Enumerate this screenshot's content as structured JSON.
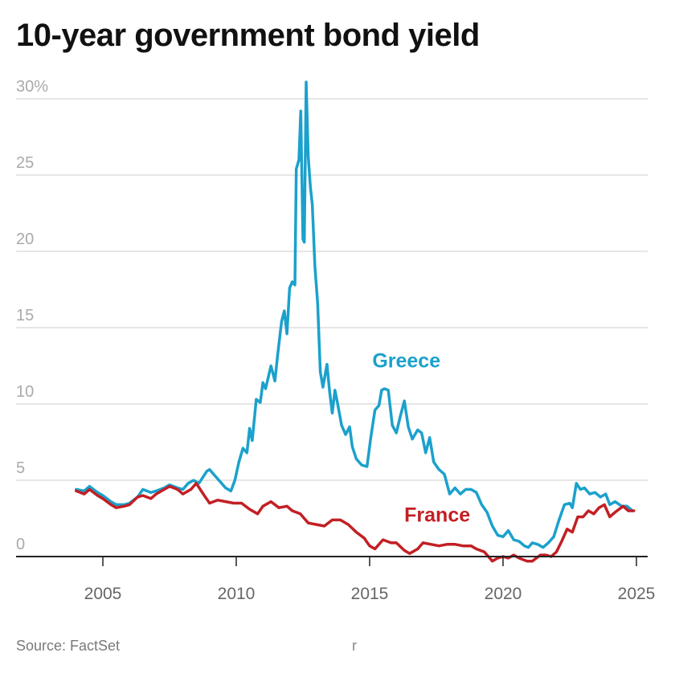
{
  "colors": {
    "greece": "#1ba1cc",
    "france": "#c21f24",
    "grid": "#dddddd",
    "axis": "#222222",
    "tick_text": "#aaaaaa",
    "xtick_text": "#666666"
  },
  "footer": {
    "source": "Source: FactSet",
    "stray_mark": "r"
  },
  "chart_data": {
    "type": "line",
    "title": "10-year government bond yield",
    "xlabel": "",
    "ylabel": "",
    "xlim": [
      2003.0,
      2025.1
    ],
    "ylim": [
      0,
      30
    ],
    "y_ticks": [
      0,
      5,
      10,
      15,
      20,
      25,
      30
    ],
    "y_tick_labels": [
      "0",
      "5",
      "10",
      "15",
      "20",
      "25",
      "30%"
    ],
    "x_ticks": [
      2005,
      2010,
      2015,
      2020,
      2025
    ],
    "x_tick_labels": [
      "2005",
      "2010",
      "2015",
      "2020",
      "2025"
    ],
    "grid": true,
    "legend": "direct labels on lines",
    "series": [
      {
        "name": "Greece",
        "label_position": {
          "x": 2015.1,
          "y": 12.4
        },
        "points": [
          [
            2004.0,
            4.4
          ],
          [
            2004.3,
            4.3
          ],
          [
            2004.5,
            4.6
          ],
          [
            2004.8,
            4.2
          ],
          [
            2005.0,
            4.0
          ],
          [
            2005.3,
            3.6
          ],
          [
            2005.5,
            3.4
          ],
          [
            2005.8,
            3.4
          ],
          [
            2006.0,
            3.5
          ],
          [
            2006.3,
            3.9
          ],
          [
            2006.5,
            4.4
          ],
          [
            2006.8,
            4.2
          ],
          [
            2007.0,
            4.3
          ],
          [
            2007.3,
            4.5
          ],
          [
            2007.5,
            4.7
          ],
          [
            2007.8,
            4.5
          ],
          [
            2008.0,
            4.4
          ],
          [
            2008.2,
            4.8
          ],
          [
            2008.4,
            5.0
          ],
          [
            2008.6,
            4.8
          ],
          [
            2008.9,
            5.6
          ],
          [
            2009.0,
            5.7
          ],
          [
            2009.2,
            5.3
          ],
          [
            2009.4,
            4.9
          ],
          [
            2009.6,
            4.5
          ],
          [
            2009.8,
            4.3
          ],
          [
            2009.95,
            5.0
          ],
          [
            2010.1,
            6.2
          ],
          [
            2010.25,
            7.1
          ],
          [
            2010.4,
            6.8
          ],
          [
            2010.5,
            8.4
          ],
          [
            2010.6,
            7.6
          ],
          [
            2010.75,
            10.3
          ],
          [
            2010.9,
            10.1
          ],
          [
            2011.0,
            11.4
          ],
          [
            2011.1,
            11.0
          ],
          [
            2011.3,
            12.5
          ],
          [
            2011.45,
            11.5
          ],
          [
            2011.55,
            13.2
          ],
          [
            2011.7,
            15.4
          ],
          [
            2011.8,
            16.1
          ],
          [
            2011.9,
            14.6
          ],
          [
            2012.0,
            17.6
          ],
          [
            2012.1,
            18.0
          ],
          [
            2012.2,
            17.8
          ],
          [
            2012.25,
            25.4
          ],
          [
            2012.35,
            26.0
          ],
          [
            2012.42,
            29.2
          ],
          [
            2012.5,
            20.8
          ],
          [
            2012.55,
            20.6
          ],
          [
            2012.62,
            31.1
          ],
          [
            2012.7,
            26.2
          ],
          [
            2012.78,
            24.2
          ],
          [
            2012.85,
            23.1
          ],
          [
            2012.95,
            19.0
          ],
          [
            2013.05,
            16.6
          ],
          [
            2013.15,
            12.1
          ],
          [
            2013.25,
            11.1
          ],
          [
            2013.4,
            12.6
          ],
          [
            2013.5,
            10.8
          ],
          [
            2013.6,
            9.4
          ],
          [
            2013.7,
            10.9
          ],
          [
            2013.8,
            10.0
          ],
          [
            2013.95,
            8.6
          ],
          [
            2014.1,
            8.0
          ],
          [
            2014.25,
            8.5
          ],
          [
            2014.35,
            7.2
          ],
          [
            2014.5,
            6.4
          ],
          [
            2014.7,
            6.0
          ],
          [
            2014.9,
            5.9
          ],
          [
            2015.05,
            7.9
          ],
          [
            2015.2,
            9.6
          ],
          [
            2015.35,
            9.9
          ],
          [
            2015.45,
            10.9
          ],
          [
            2015.55,
            11.0
          ],
          [
            2015.7,
            10.9
          ],
          [
            2015.85,
            8.6
          ],
          [
            2016.0,
            8.1
          ],
          [
            2016.15,
            9.2
          ],
          [
            2016.3,
            10.2
          ],
          [
            2016.45,
            8.5
          ],
          [
            2016.6,
            7.7
          ],
          [
            2016.8,
            8.3
          ],
          [
            2016.95,
            8.1
          ],
          [
            2017.1,
            6.8
          ],
          [
            2017.25,
            7.8
          ],
          [
            2017.4,
            6.2
          ],
          [
            2017.6,
            5.7
          ],
          [
            2017.8,
            5.4
          ],
          [
            2018.0,
            4.1
          ],
          [
            2018.2,
            4.5
          ],
          [
            2018.4,
            4.1
          ],
          [
            2018.6,
            4.4
          ],
          [
            2018.8,
            4.4
          ],
          [
            2019.0,
            4.2
          ],
          [
            2019.2,
            3.4
          ],
          [
            2019.4,
            2.9
          ],
          [
            2019.6,
            2.0
          ],
          [
            2019.8,
            1.4
          ],
          [
            2020.0,
            1.3
          ],
          [
            2020.2,
            1.7
          ],
          [
            2020.4,
            1.1
          ],
          [
            2020.6,
            1.0
          ],
          [
            2020.8,
            0.7
          ],
          [
            2020.95,
            0.6
          ],
          [
            2021.1,
            0.9
          ],
          [
            2021.3,
            0.8
          ],
          [
            2021.5,
            0.6
          ],
          [
            2021.7,
            0.9
          ],
          [
            2021.9,
            1.3
          ],
          [
            2022.1,
            2.4
          ],
          [
            2022.3,
            3.4
          ],
          [
            2022.5,
            3.5
          ],
          [
            2022.6,
            3.2
          ],
          [
            2022.75,
            4.8
          ],
          [
            2022.9,
            4.4
          ],
          [
            2023.05,
            4.5
          ],
          [
            2023.25,
            4.1
          ],
          [
            2023.45,
            4.2
          ],
          [
            2023.65,
            3.9
          ],
          [
            2023.85,
            4.1
          ],
          [
            2024.0,
            3.4
          ],
          [
            2024.2,
            3.6
          ],
          [
            2024.45,
            3.3
          ],
          [
            2024.65,
            3.3
          ],
          [
            2024.85,
            3.0
          ]
        ]
      },
      {
        "name": "France",
        "label_position": {
          "x": 2016.3,
          "y": 2.3
        },
        "points": [
          [
            2004.0,
            4.3
          ],
          [
            2004.3,
            4.1
          ],
          [
            2004.5,
            4.4
          ],
          [
            2004.8,
            4.0
          ],
          [
            2005.0,
            3.8
          ],
          [
            2005.3,
            3.4
          ],
          [
            2005.5,
            3.2
          ],
          [
            2005.8,
            3.3
          ],
          [
            2006.0,
            3.4
          ],
          [
            2006.3,
            3.9
          ],
          [
            2006.5,
            4.0
          ],
          [
            2006.8,
            3.8
          ],
          [
            2007.0,
            4.1
          ],
          [
            2007.3,
            4.4
          ],
          [
            2007.5,
            4.6
          ],
          [
            2007.8,
            4.4
          ],
          [
            2008.0,
            4.1
          ],
          [
            2008.3,
            4.4
          ],
          [
            2008.5,
            4.8
          ],
          [
            2008.8,
            4.0
          ],
          [
            2009.0,
            3.5
          ],
          [
            2009.3,
            3.7
          ],
          [
            2009.6,
            3.6
          ],
          [
            2009.9,
            3.5
          ],
          [
            2010.2,
            3.5
          ],
          [
            2010.5,
            3.1
          ],
          [
            2010.8,
            2.8
          ],
          [
            2011.0,
            3.3
          ],
          [
            2011.3,
            3.6
          ],
          [
            2011.6,
            3.2
          ],
          [
            2011.9,
            3.3
          ],
          [
            2012.1,
            3.0
          ],
          [
            2012.4,
            2.8
          ],
          [
            2012.7,
            2.2
          ],
          [
            2013.0,
            2.1
          ],
          [
            2013.3,
            2.0
          ],
          [
            2013.6,
            2.4
          ],
          [
            2013.9,
            2.4
          ],
          [
            2014.2,
            2.1
          ],
          [
            2014.5,
            1.6
          ],
          [
            2014.8,
            1.2
          ],
          [
            2015.0,
            0.7
          ],
          [
            2015.2,
            0.5
          ],
          [
            2015.5,
            1.1
          ],
          [
            2015.8,
            0.9
          ],
          [
            2016.0,
            0.9
          ],
          [
            2016.3,
            0.4
          ],
          [
            2016.5,
            0.2
          ],
          [
            2016.8,
            0.5
          ],
          [
            2017.0,
            0.9
          ],
          [
            2017.3,
            0.8
          ],
          [
            2017.6,
            0.7
          ],
          [
            2017.9,
            0.8
          ],
          [
            2018.2,
            0.8
          ],
          [
            2018.5,
            0.7
          ],
          [
            2018.8,
            0.7
          ],
          [
            2019.0,
            0.5
          ],
          [
            2019.3,
            0.3
          ],
          [
            2019.6,
            -0.3
          ],
          [
            2019.8,
            -0.1
          ],
          [
            2020.0,
            0.0
          ],
          [
            2020.2,
            -0.1
          ],
          [
            2020.4,
            0.1
          ],
          [
            2020.6,
            -0.1
          ],
          [
            2020.9,
            -0.3
          ],
          [
            2021.1,
            -0.3
          ],
          [
            2021.4,
            0.1
          ],
          [
            2021.6,
            0.1
          ],
          [
            2021.8,
            0.0
          ],
          [
            2022.0,
            0.3
          ],
          [
            2022.2,
            1.0
          ],
          [
            2022.4,
            1.8
          ],
          [
            2022.6,
            1.6
          ],
          [
            2022.8,
            2.6
          ],
          [
            2023.0,
            2.6
          ],
          [
            2023.2,
            3.0
          ],
          [
            2023.4,
            2.8
          ],
          [
            2023.6,
            3.2
          ],
          [
            2023.8,
            3.4
          ],
          [
            2024.0,
            2.6
          ],
          [
            2024.2,
            2.9
          ],
          [
            2024.5,
            3.3
          ],
          [
            2024.7,
            3.0
          ],
          [
            2024.9,
            3.0
          ]
        ]
      }
    ]
  }
}
